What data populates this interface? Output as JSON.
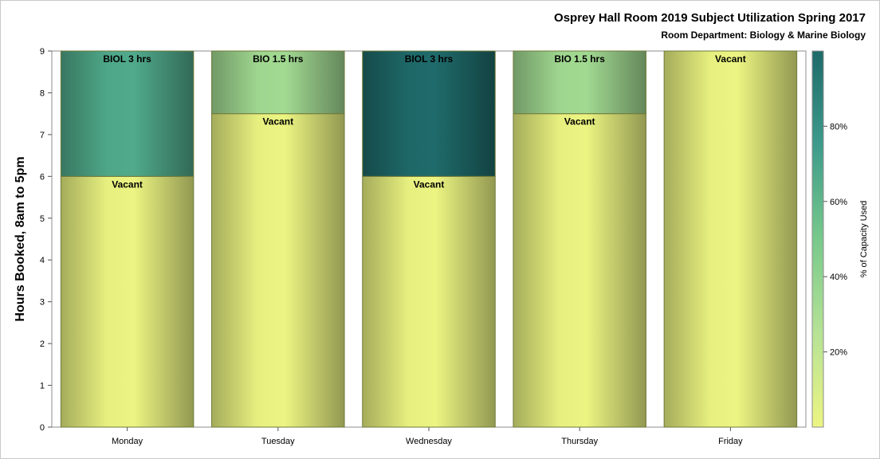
{
  "chart_data": {
    "type": "bar",
    "stacked": true,
    "title": "Osprey Hall Room 2019 Subject Utilization Spring 2017",
    "subtitle": "Room Department:  Biology & Marine Biology",
    "ylabel": "Hours Booked, 8am to 5pm",
    "xlabel": "",
    "ylim": [
      0,
      9
    ],
    "yticks": [
      "0",
      "1",
      "2",
      "3",
      "4",
      "5",
      "6",
      "7",
      "8",
      "9"
    ],
    "grid": false,
    "categories": [
      "Monday",
      "Tuesday",
      "Wednesday",
      "Thursday",
      "Friday"
    ],
    "segments": [
      [
        {
          "label": "Vacant",
          "hours": 6,
          "pct": 0
        },
        {
          "label": "BIOL 3 hrs",
          "hours": 3,
          "pct": 67
        }
      ],
      [
        {
          "label": "Vacant",
          "hours": 7.5,
          "pct": 0
        },
        {
          "label": "BIO 1.5 hrs",
          "hours": 1.5,
          "pct": 33
        }
      ],
      [
        {
          "label": "Vacant",
          "hours": 6,
          "pct": 0
        },
        {
          "label": "BIOL 3 hrs",
          "hours": 3,
          "pct": 100
        }
      ],
      [
        {
          "label": "Vacant",
          "hours": 7.5,
          "pct": 0
        },
        {
          "label": "BIO 1.5 hrs",
          "hours": 1.5,
          "pct": 33
        }
      ],
      [
        {
          "label": "Vacant",
          "hours": 9,
          "pct": 0
        }
      ]
    ],
    "colorbar": {
      "label": "% of Capacity Used",
      "ticks": [
        "20%",
        "40%",
        "60%",
        "80%"
      ],
      "tick_values": [
        20,
        40,
        60,
        80
      ],
      "range": [
        0,
        100
      ],
      "colors": [
        "#ecf582",
        "#b6e296",
        "#78c98b",
        "#3d9b8b",
        "#1f6a6a"
      ]
    }
  }
}
